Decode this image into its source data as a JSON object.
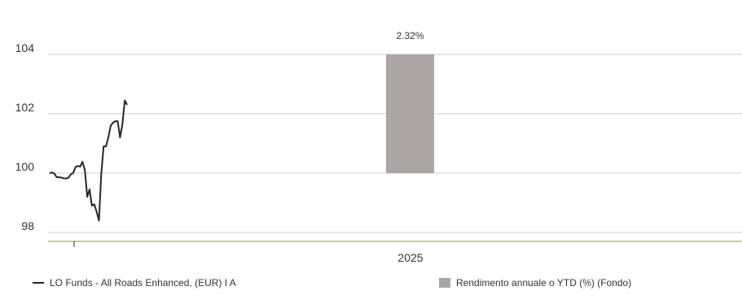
{
  "chart_data": {
    "type": "line+bar",
    "y_axis": {
      "ticks": [
        98,
        100,
        102,
        104
      ],
      "range": [
        97.5,
        104.8
      ],
      "grid": true
    },
    "x_axis": {
      "category_label": "2025"
    },
    "series": [
      {
        "name": "LO Funds - All Roads Enhanced, (EUR) I A",
        "type": "line",
        "color": "#2b2523",
        "note": "x values are 0-based trading-day index from start of period",
        "points": [
          [
            0,
            100.0
          ],
          [
            1,
            100.02
          ],
          [
            2,
            99.98
          ],
          [
            3,
            99.86
          ],
          [
            4,
            99.86
          ],
          [
            5,
            99.85
          ],
          [
            6,
            99.82
          ],
          [
            7,
            99.82
          ],
          [
            8,
            99.84
          ],
          [
            9,
            99.96
          ],
          [
            10,
            100.0
          ],
          [
            11,
            100.2
          ],
          [
            12,
            100.24
          ],
          [
            13,
            100.22
          ],
          [
            14,
            100.38
          ],
          [
            15,
            100.1
          ],
          [
            16,
            99.2
          ],
          [
            17,
            99.45
          ],
          [
            18,
            98.9
          ],
          [
            19,
            98.95
          ],
          [
            20,
            98.7
          ],
          [
            21,
            98.4
          ],
          [
            22,
            100.0
          ],
          [
            23,
            100.9
          ],
          [
            24,
            100.9
          ],
          [
            25,
            101.2
          ],
          [
            26,
            101.6
          ],
          [
            27,
            101.7
          ],
          [
            28,
            101.75
          ],
          [
            29,
            101.75
          ],
          [
            30,
            101.2
          ],
          [
            31,
            101.65
          ],
          [
            32,
            102.45
          ],
          [
            33,
            102.3
          ]
        ]
      },
      {
        "name": "Rendimento annuale o YTD (%) (Fondo)",
        "type": "bar",
        "color": "#aba6a5",
        "categories": [
          "2025"
        ],
        "values": [
          2.32
        ],
        "value_labels": [
          "2.32%"
        ]
      }
    ]
  },
  "legend": {
    "line_label": "LO Funds - All Roads Enhanced, (EUR) I A",
    "bar_label": "Rendimento annuale o YTD (%) (Fondo)"
  }
}
